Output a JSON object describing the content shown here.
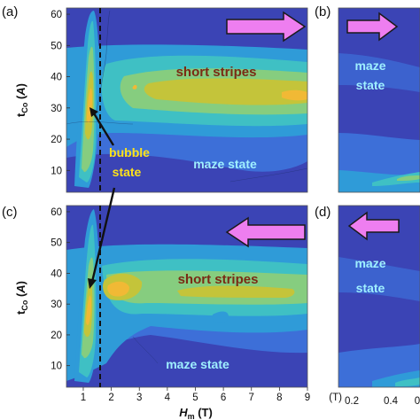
{
  "chart_data": [
    {
      "panel_label": "(a)",
      "type": "heatmap",
      "xlabel": "",
      "ylabel": "t_Co (Å)",
      "xlim": [
        0.4,
        9
      ],
      "ylim": [
        3,
        62
      ],
      "yticks": [
        10,
        20,
        30,
        40,
        50,
        60
      ],
      "dashed_line_x": 1.55,
      "sweep_direction": "right",
      "annotations": [
        {
          "text": "short stripes",
          "x": 5.3,
          "y": 40,
          "color": "#7a2a14"
        },
        {
          "text": "bubble",
          "x": 2.3,
          "y": 15,
          "color": "#ffe21a",
          "arrow_to": [
            1.05,
            30
          ]
        },
        {
          "text": "state",
          "x": 2.3,
          "y": 6,
          "color": "#ffe21a"
        },
        {
          "text": "maze state",
          "x": 5.5,
          "y": 8,
          "color": "#9ff0ff"
        }
      ]
    },
    {
      "panel_label": "(b)",
      "type": "heatmap",
      "sweep_direction": "right",
      "annotations": [
        {
          "text": "maze",
          "y": 44,
          "color": "#9ff0ff"
        },
        {
          "text": "state",
          "y": 37,
          "color": "#9ff0ff"
        }
      ]
    },
    {
      "panel_label": "(c)",
      "type": "heatmap",
      "xlabel": "H_m (T)",
      "ylabel": "t_Co (Å)",
      "xlim": [
        0.4,
        9
      ],
      "ylim": [
        3,
        62
      ],
      "xticks": [
        "1",
        "2",
        "3",
        "4",
        "5",
        "6",
        "7",
        "8",
        "9",
        "(T)"
      ],
      "yticks": [
        10,
        20,
        30,
        40,
        50,
        60
      ],
      "dashed_line_x": 1.55,
      "sweep_direction": "left",
      "annotations": [
        {
          "text": "short stripes",
          "x": 5.4,
          "y": 38,
          "color": "#7a2a14"
        },
        {
          "text": "maze state",
          "x": 5.3,
          "y": 11,
          "color": "#9ff0ff"
        }
      ]
    },
    {
      "panel_label": "(d)",
      "type": "heatmap",
      "xticks": [
        "0.2",
        "0.4",
        "0"
      ],
      "sweep_direction": "left",
      "annotations": [
        {
          "text": "maze",
          "y": 44,
          "color": "#9ff0ff"
        },
        {
          "text": "state",
          "y": 35,
          "color": "#9ff0ff"
        }
      ]
    }
  ],
  "colors": {
    "level0": "#3b44b5",
    "level1": "#3d6fd8",
    "level2": "#2f9bd8",
    "level3": "#3fc0c4",
    "level4": "#86cd7f",
    "level5": "#c4c43a",
    "level6": "#f1b935",
    "arrow_fill": "#ee7ef0",
    "arrow_stroke": "#1a1a1a"
  }
}
